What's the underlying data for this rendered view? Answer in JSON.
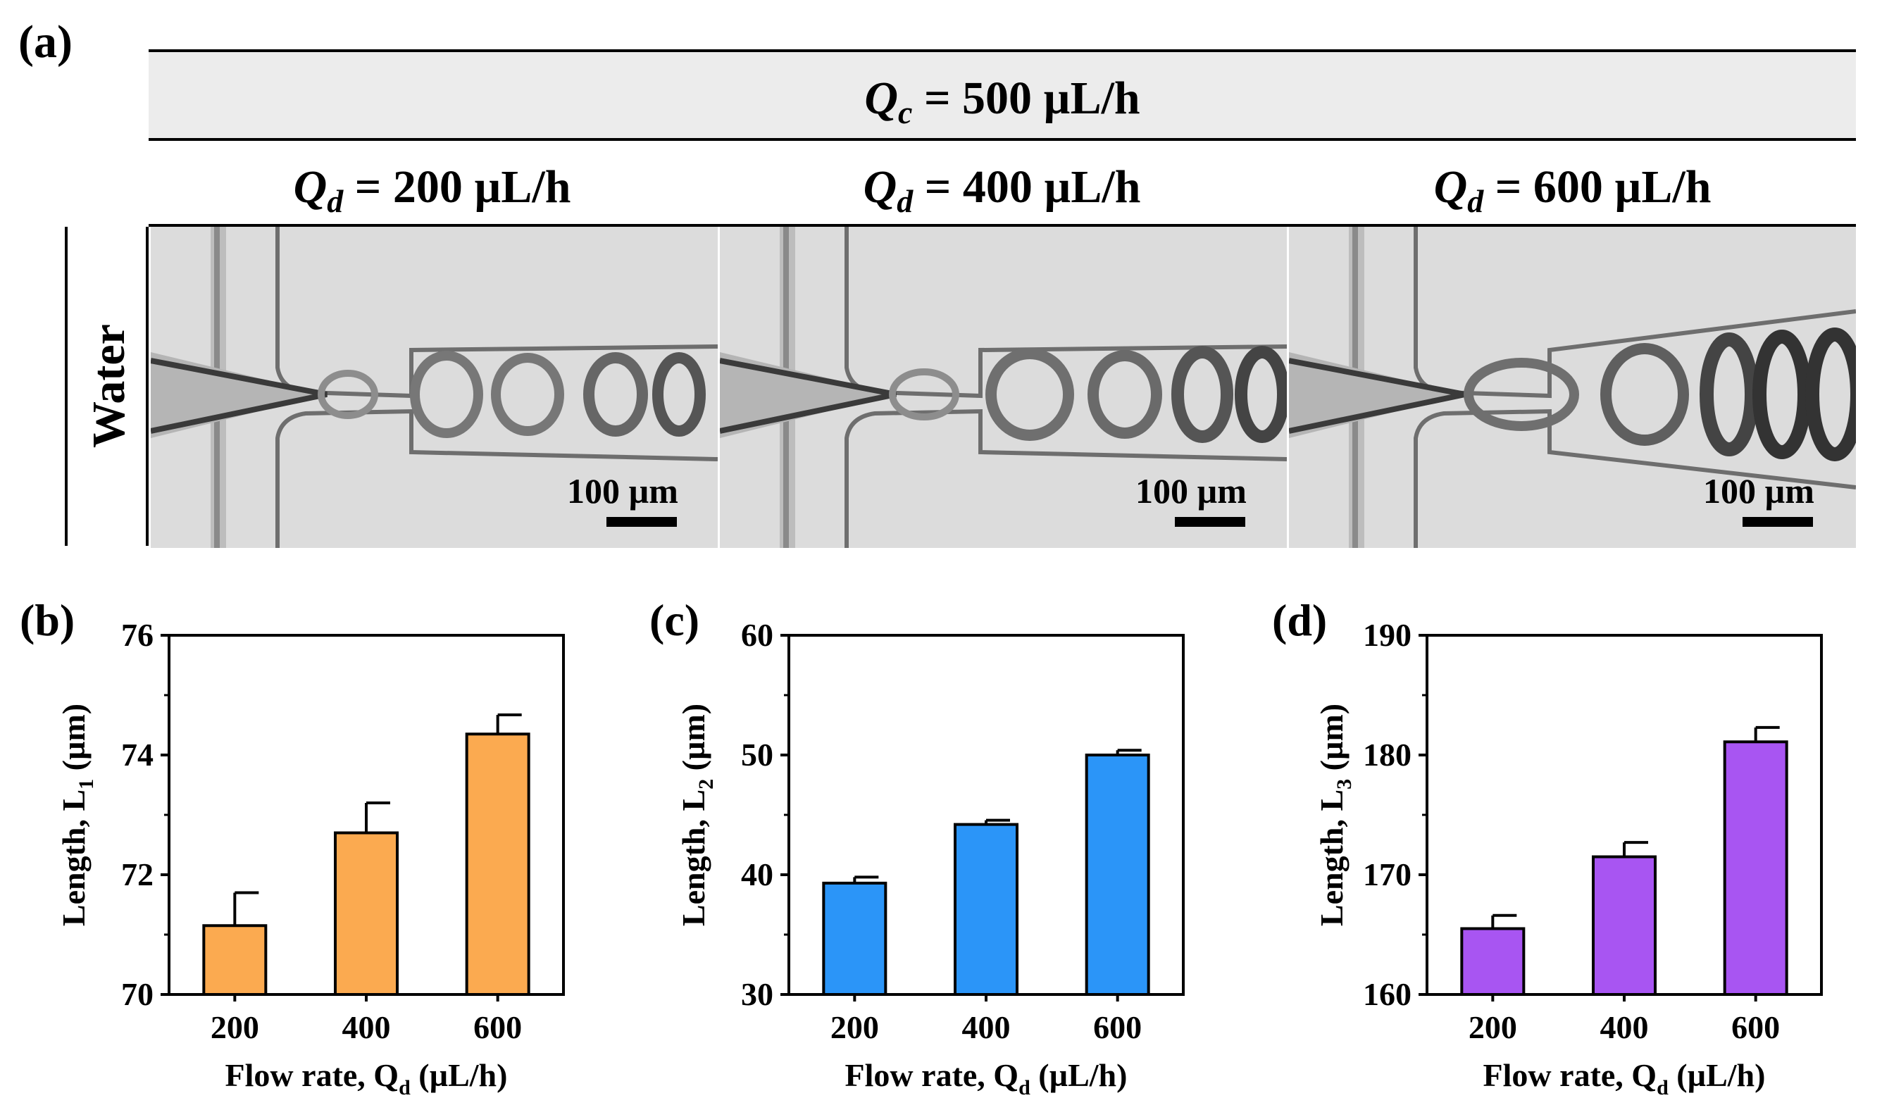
{
  "panel_a": {
    "label": "(a)",
    "banner": {
      "symbol": "Q",
      "subscript": "c",
      "value": "= 500 µL/h"
    },
    "columns": [
      {
        "symbol": "Q",
        "subscript": "d",
        "value": "= 200 µL/h",
        "scale": "100 µm"
      },
      {
        "symbol": "Q",
        "subscript": "d",
        "value": "= 400 µL/h",
        "scale": "100 µm"
      },
      {
        "symbol": "Q",
        "subscript": "d",
        "value": "= 600 µL/h",
        "scale": "100 µm"
      }
    ],
    "row_label": "Water"
  },
  "colors": {
    "orange": "#FBAA50",
    "blue": "#2B95F8",
    "purple": "#A855F2"
  },
  "chart_data": [
    {
      "panel": "(b)",
      "type": "bar",
      "categories": [
        "200",
        "400",
        "600"
      ],
      "values": [
        71.15,
        72.7,
        74.35
      ],
      "errors": [
        0.55,
        0.5,
        0.32
      ],
      "ylabel_main": "Length, L",
      "ylabel_sub": "1",
      "ylabel_unit": " (µm)",
      "xlabel_main": "Flow rate, Q",
      "xlabel_sub": "d",
      "xlabel_unit": " (µL/h)",
      "ylim": [
        70,
        76
      ],
      "yticks": [
        "70",
        "72",
        "74",
        "76"
      ],
      "color": "#FBAA50"
    },
    {
      "panel": "(c)",
      "type": "bar",
      "categories": [
        "200",
        "400",
        "600"
      ],
      "values": [
        39.3,
        44.2,
        50.0
      ],
      "errors": [
        0.5,
        0.35,
        0.4
      ],
      "ylabel_main": "Length, L",
      "ylabel_sub": "2",
      "ylabel_unit": " (µm)",
      "xlabel_main": "Flow rate, Q",
      "xlabel_sub": "d",
      "xlabel_unit": " (µL/h)",
      "ylim": [
        30,
        60
      ],
      "yticks": [
        "30",
        "40",
        "50",
        "60"
      ],
      "color": "#2B95F8"
    },
    {
      "panel": "(d)",
      "type": "bar",
      "categories": [
        "200",
        "400",
        "600"
      ],
      "values": [
        165.5,
        171.5,
        181.1
      ],
      "errors": [
        1.1,
        1.2,
        1.2
      ],
      "ylabel_main": "Length, L",
      "ylabel_sub": "3",
      "ylabel_unit": " (µm)",
      "xlabel_main": "Flow rate, Q",
      "xlabel_sub": "d",
      "xlabel_unit": " (µL/h)",
      "ylim": [
        160,
        190
      ],
      "yticks": [
        "160",
        "170",
        "180",
        "190"
      ],
      "color": "#A855F2"
    }
  ]
}
